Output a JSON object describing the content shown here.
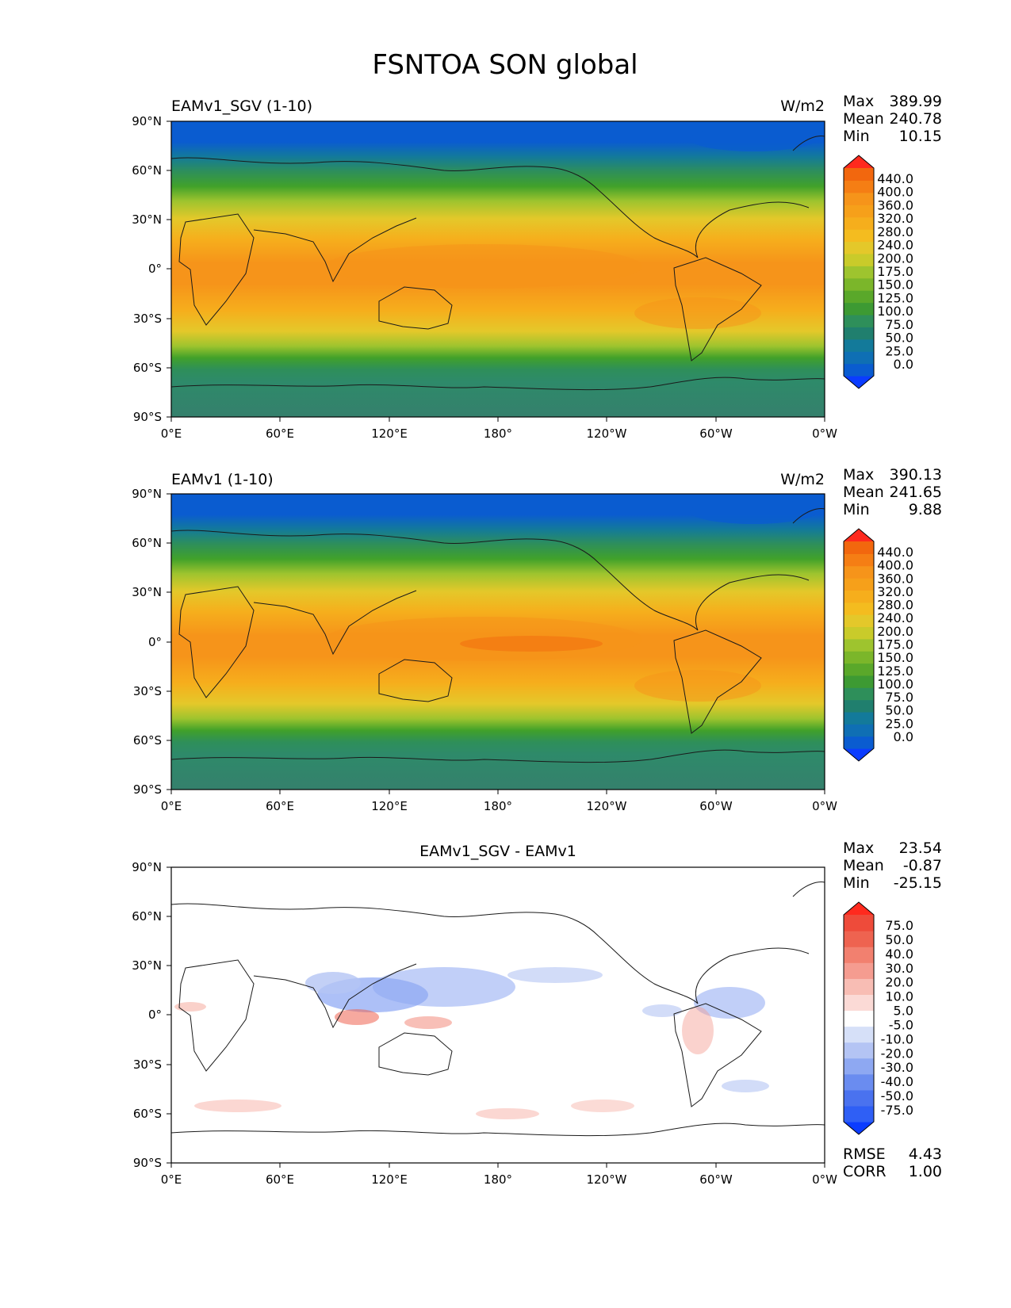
{
  "figure_title": "FSNTOA SON global",
  "colors": {
    "ocean_gradient": [
      "#0a5cd0",
      "#137a9a",
      "#2e8f5a",
      "#41a12a",
      "#9ec42e",
      "#e4c82a",
      "#f6ae1c",
      "#f6941a"
    ],
    "contour_line": "#1a1a1a",
    "diff_neg": "#3a6ee8",
    "diff_pos": "#ee4b3a"
  },
  "panels": [
    {
      "id": "test",
      "title_left": "EAMv1_SGV (1-10)",
      "title_right": "W/m2",
      "title_center": "",
      "stats": [
        {
          "label": "Max",
          "value": "389.99"
        },
        {
          "label": "Mean",
          "value": "240.78"
        },
        {
          "label": "Min",
          "value": "10.15"
        }
      ],
      "extra_stats": []
    },
    {
      "id": "ref",
      "title_left": "EAMv1 (1-10)",
      "title_right": "W/m2",
      "title_center": "",
      "stats": [
        {
          "label": "Max",
          "value": "390.13"
        },
        {
          "label": "Mean",
          "value": "241.65"
        },
        {
          "label": "Min",
          "value": "9.88"
        }
      ],
      "extra_stats": []
    },
    {
      "id": "diff",
      "title_left": "",
      "title_right": "",
      "title_center": "EAMv1_SGV - EAMv1",
      "stats": [
        {
          "label": "Max",
          "value": "23.54"
        },
        {
          "label": "Mean",
          "value": "-0.87"
        },
        {
          "label": "Min",
          "value": "-25.15"
        }
      ],
      "extra_stats": [
        {
          "label": "RMSE",
          "value": "4.43"
        },
        {
          "label": "CORR",
          "value": "1.00"
        }
      ]
    }
  ],
  "chart_data": [
    {
      "type": "heatmap",
      "title": "EAMv1_SGV (1-10)",
      "variable": "FSNTOA",
      "season": "SON",
      "units": "W/m2",
      "x_ticks": [
        "0°E",
        "60°E",
        "120°E",
        "180°",
        "120°W",
        "60°W",
        "0°W"
      ],
      "y_ticks": [
        "90°N",
        "60°N",
        "30°N",
        "0°",
        "30°S",
        "60°S",
        "90°S"
      ],
      "xlim": [
        0,
        360
      ],
      "ylim": [
        -90,
        90
      ],
      "colorbar_levels": [
        0,
        25,
        50,
        75,
        100,
        125,
        150,
        175,
        200,
        240,
        280,
        320,
        360,
        400,
        440
      ],
      "colorbar_labels": [
        "440.0",
        "400.0",
        "360.0",
        "320.0",
        "280.0",
        "240.0",
        "200.0",
        "175.0",
        "150.0",
        "125.0",
        "100.0",
        "75.0",
        "50.0",
        "25.0",
        "0.0"
      ],
      "colorbar_colors": [
        "#0b3cff",
        "#0a5cd0",
        "#0f6fb4",
        "#137a9a",
        "#207f6e",
        "#2e8f5a",
        "#3d9a33",
        "#5aa82a",
        "#7bb62a",
        "#9ec42e",
        "#c9cb2a",
        "#e4c82a",
        "#f4bc1f",
        "#f6ae1c",
        "#f6a01a",
        "#f6941a",
        "#f57e14",
        "#f2670e",
        "#ff2a1e"
      ],
      "max": 389.99,
      "mean": 240.78,
      "min": 10.15
    },
    {
      "type": "heatmap",
      "title": "EAMv1 (1-10)",
      "variable": "FSNTOA",
      "season": "SON",
      "units": "W/m2",
      "x_ticks": [
        "0°E",
        "60°E",
        "120°E",
        "180°",
        "120°W",
        "60°W",
        "0°W"
      ],
      "y_ticks": [
        "90°N",
        "60°N",
        "30°N",
        "0°",
        "30°S",
        "60°S",
        "90°S"
      ],
      "xlim": [
        0,
        360
      ],
      "ylim": [
        -90,
        90
      ],
      "colorbar_levels": [
        0,
        25,
        50,
        75,
        100,
        125,
        150,
        175,
        200,
        240,
        280,
        320,
        360,
        400,
        440
      ],
      "colorbar_labels": [
        "440.0",
        "400.0",
        "360.0",
        "320.0",
        "280.0",
        "240.0",
        "200.0",
        "175.0",
        "150.0",
        "125.0",
        "100.0",
        "75.0",
        "50.0",
        "25.0",
        "0.0"
      ],
      "colorbar_colors": [
        "#0b3cff",
        "#0a5cd0",
        "#0f6fb4",
        "#137a9a",
        "#207f6e",
        "#2e8f5a",
        "#3d9a33",
        "#5aa82a",
        "#7bb62a",
        "#9ec42e",
        "#c9cb2a",
        "#e4c82a",
        "#f4bc1f",
        "#f6ae1c",
        "#f6a01a",
        "#f6941a",
        "#f57e14",
        "#f2670e",
        "#ff2a1e"
      ],
      "max": 390.13,
      "mean": 241.65,
      "min": 9.88
    },
    {
      "type": "heatmap",
      "title": "EAMv1_SGV - EAMv1",
      "variable": "FSNTOA",
      "season": "SON",
      "units": "W/m2",
      "x_ticks": [
        "0°E",
        "60°E",
        "120°E",
        "180°",
        "120°W",
        "60°W",
        "0°W"
      ],
      "y_ticks": [
        "90°N",
        "60°N",
        "30°N",
        "0°",
        "30°S",
        "60°S",
        "90°S"
      ],
      "xlim": [
        0,
        360
      ],
      "ylim": [
        -90,
        90
      ],
      "colorbar_levels": [
        -75,
        -50,
        -40,
        -30,
        -20,
        -10,
        -5,
        5,
        10,
        20,
        30,
        40,
        50,
        75
      ],
      "colorbar_labels": [
        "75.0",
        "50.0",
        "40.0",
        "30.0",
        "20.0",
        "10.0",
        "5.0",
        "-5.0",
        "-10.0",
        "-20.0",
        "-30.0",
        "-40.0",
        "-50.0",
        "-75.0"
      ],
      "colorbar_colors": [
        "#0b3cff",
        "#2f5ff5",
        "#4a72ef",
        "#6a8cf0",
        "#8ea8f2",
        "#b4c4f4",
        "#d6e0f8",
        "#ffffff",
        "#fbdad6",
        "#f8bdb4",
        "#f59c90",
        "#f2806f",
        "#ee6350",
        "#ee4b3a",
        "#ff2a1e"
      ],
      "max": 23.54,
      "mean": -0.87,
      "min": -25.15,
      "rmse": 4.43,
      "corr": 1.0
    }
  ]
}
